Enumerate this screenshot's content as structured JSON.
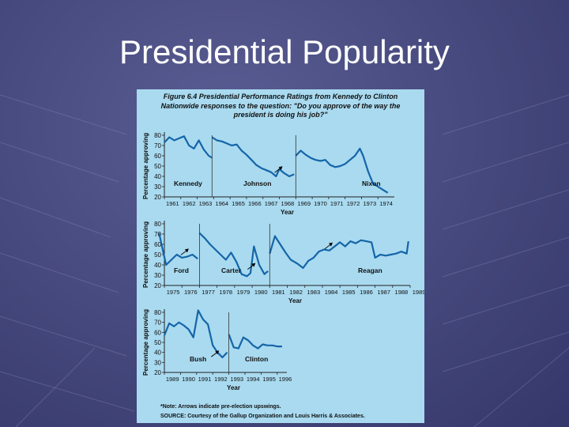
{
  "slide": {
    "title": "Presidential Popularity"
  },
  "figure": {
    "caption_line1": "Figure 6.4  Presidential Performance Ratings from Kennedy to Clinton",
    "caption_line2": "Nationwide responses to the question: \"Do you approve of the way the",
    "caption_line3": "president is doing his job?\"",
    "note": "*Note: Arrows indicate pre-election upswings.",
    "source": "SOURCE: Courtesy of the Gallup Organization and Louis Harris & Associates."
  },
  "colors": {
    "line": "#1565a8",
    "panel_bg": "#a9daf0",
    "slide_bg": "#45487c"
  },
  "chart_data": [
    {
      "type": "line",
      "ylabel": "Percentage approving",
      "xlabel": "Year",
      "ylim": [
        20,
        80
      ],
      "yticks": [
        20,
        30,
        40,
        50,
        60,
        70,
        80
      ],
      "xlim": [
        1961,
        1975
      ],
      "xticks": [
        "1961",
        "1962",
        "1963",
        "1964",
        "1965",
        "1966",
        "1967",
        "1968",
        "1969",
        "1970",
        "1971",
        "1972",
        "1973",
        "1974"
      ],
      "series": [
        {
          "name": "Kennedy",
          "x": [
            1961.0,
            1961.3,
            1961.6,
            1961.9,
            1962.2,
            1962.5,
            1962.8,
            1963.1,
            1963.4,
            1963.7,
            1963.9
          ],
          "y": [
            73,
            78,
            75,
            77,
            79,
            70,
            67,
            75,
            66,
            60,
            58
          ]
        },
        {
          "name": "Johnson",
          "x": [
            1963.9,
            1964.2,
            1964.5,
            1964.8,
            1965.1,
            1965.4,
            1965.7,
            1966.0,
            1966.3,
            1966.6,
            1966.9,
            1967.2,
            1967.5,
            1967.8,
            1968.0,
            1968.3,
            1968.6,
            1968.9
          ],
          "y": [
            78,
            75,
            74,
            72,
            70,
            71,
            65,
            61,
            56,
            51,
            48,
            46,
            44,
            40,
            47,
            43,
            40,
            42
          ]
        },
        {
          "name": "Nixon",
          "x": [
            1969.0,
            1969.3,
            1969.6,
            1969.9,
            1970.2,
            1970.5,
            1970.8,
            1971.1,
            1971.4,
            1971.7,
            1972.0,
            1972.3,
            1972.6,
            1972.9,
            1973.1,
            1973.4,
            1973.7,
            1974.0,
            1974.3,
            1974.6
          ],
          "y": [
            60,
            65,
            61,
            58,
            56,
            55,
            56,
            51,
            49,
            50,
            52,
            56,
            60,
            67,
            60,
            45,
            33,
            30,
            27,
            24
          ]
        }
      ],
      "annotations": [
        "pre-election upswing arrow 1968",
        "pre-election upswing arrow 1972"
      ]
    },
    {
      "type": "line",
      "ylabel": "Percentage approving",
      "xlabel": "Year",
      "ylim": [
        20,
        80
      ],
      "yticks": [
        20,
        30,
        40,
        50,
        60,
        70,
        80
      ],
      "xlim": [
        1975,
        1989
      ],
      "xticks": [
        "1975",
        "1976",
        "1977",
        "1978",
        "1979",
        "1980",
        "1981",
        "1982",
        "1983",
        "1984",
        "1985",
        "1986",
        "1987",
        "1988",
        "1989"
      ],
      "series": [
        {
          "name": "Ford",
          "x": [
            1974.7,
            1974.9,
            1975.1,
            1975.4,
            1975.7,
            1976.0,
            1976.3,
            1976.6,
            1976.9
          ],
          "y": [
            71,
            55,
            40,
            45,
            50,
            47,
            48,
            50,
            46
          ]
        },
        {
          "name": "Carter",
          "x": [
            1977.0,
            1977.3,
            1977.6,
            1977.9,
            1978.2,
            1978.5,
            1978.8,
            1979.1,
            1979.4,
            1979.7,
            1979.9,
            1980.1,
            1980.4,
            1980.7,
            1980.9
          ],
          "y": [
            71,
            66,
            60,
            55,
            50,
            45,
            52,
            43,
            31,
            29,
            32,
            58,
            40,
            31,
            34
          ]
        },
        {
          "name": "Reagan",
          "x": [
            1981.0,
            1981.3,
            1981.6,
            1981.9,
            1982.2,
            1982.6,
            1982.9,
            1983.2,
            1983.5,
            1983.8,
            1984.1,
            1984.4,
            1984.7,
            1985.0,
            1985.3,
            1985.6,
            1985.9,
            1986.2,
            1986.5,
            1986.8,
            1987.0,
            1987.3,
            1987.6,
            1987.9,
            1988.2,
            1988.5,
            1988.8,
            1988.9
          ],
          "y": [
            51,
            68,
            60,
            52,
            45,
            41,
            37,
            44,
            47,
            53,
            55,
            54,
            58,
            62,
            58,
            63,
            61,
            64,
            63,
            62,
            47,
            50,
            49,
            50,
            51,
            53,
            51,
            63
          ]
        }
      ],
      "annotations": [
        "pre-election upswing arrow 1976",
        "pre-election upswing arrow 1980",
        "pre-election upswing arrow 1984"
      ]
    },
    {
      "type": "line",
      "ylabel": "Percentage approving",
      "xlabel": "Year",
      "ylim": [
        20,
        80
      ],
      "yticks": [
        20,
        30,
        40,
        50,
        60,
        70,
        80
      ],
      "xlim": [
        1989,
        1996.6
      ],
      "xticks": [
        "1989",
        "1990",
        "1991",
        "1992",
        "1993",
        "1994",
        "1995",
        "1996"
      ],
      "series": [
        {
          "name": "Bush",
          "x": [
            1989.0,
            1989.3,
            1989.6,
            1989.9,
            1990.2,
            1990.5,
            1990.8,
            1991.1,
            1991.4,
            1991.7,
            1992.0,
            1992.3,
            1992.6,
            1992.9
          ],
          "y": [
            57,
            69,
            66,
            70,
            67,
            63,
            55,
            82,
            73,
            68,
            47,
            40,
            35,
            40
          ]
        },
        {
          "name": "Clinton",
          "x": [
            1993.0,
            1993.3,
            1993.6,
            1993.9,
            1994.2,
            1994.5,
            1994.8,
            1995.1,
            1995.4,
            1995.7,
            1996.0,
            1996.3
          ],
          "y": [
            58,
            45,
            44,
            55,
            52,
            47,
            44,
            48,
            47,
            47,
            46,
            46
          ]
        }
      ],
      "annotations": [
        "pre-election upswing arrow 1992"
      ]
    }
  ]
}
